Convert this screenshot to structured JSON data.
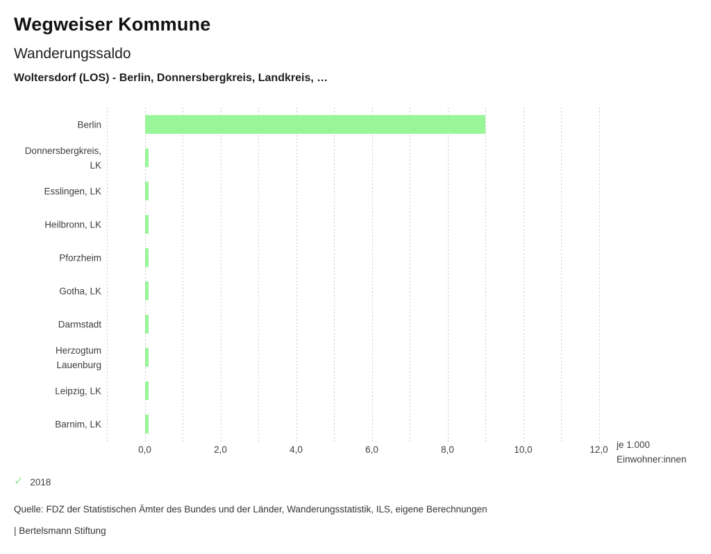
{
  "header": {
    "app_title": "Wegweiser Kommune",
    "chart_title": "Wanderungssaldo",
    "comparison": "Woltersdorf (LOS) - Berlin, Donnersbergkreis, Landkreis, …"
  },
  "chart_data": {
    "type": "bar",
    "orientation": "horizontal",
    "title": "Wanderungssaldo",
    "categories": [
      "Berlin",
      "Donnersbergkreis,\nLK",
      "Esslingen, LK",
      "Heilbronn, LK",
      "Pforzheim",
      "Gotha, LK",
      "Darmstadt",
      "Herzogtum\nLauenburg",
      "Leipzig, LK",
      "Barnim, LK"
    ],
    "series": [
      {
        "name": "2018",
        "values": [
          9.0,
          0.1,
          0.1,
          0.1,
          0.1,
          0.1,
          0.1,
          0.1,
          0.1,
          0.1
        ]
      }
    ],
    "xlabel": "je 1.000 Einwohner:innen",
    "xlim": [
      -1.0,
      12.2
    ],
    "grid": "dashed-vertical-every-1.0",
    "x_ticks": [
      {
        "value": 0,
        "label": "0,0"
      },
      {
        "value": 2,
        "label": "2,0"
      },
      {
        "value": 4,
        "label": "4,0"
      },
      {
        "value": 6,
        "label": "6,0"
      },
      {
        "value": 8,
        "label": "8,0"
      },
      {
        "value": 10,
        "label": "10,0"
      },
      {
        "value": 12,
        "label": "12,0"
      }
    ],
    "legend_position": "bottom-left",
    "colors": {
      "bar": "#98f598",
      "legend_check": "#8ee88e",
      "gridline": "#c9c9c9"
    }
  },
  "axis_unit": {
    "line1": "je 1.000",
    "line2": "Einwohner:innen"
  },
  "legend": {
    "check_icon": "✓",
    "label": "2018"
  },
  "footer": {
    "source": "Quelle: FDZ der Statistischen Ämter des Bundes und der Länder, Wanderungsstatistik, ILS, eigene Berechnungen",
    "attribution": "| Bertelsmann Stiftung"
  }
}
